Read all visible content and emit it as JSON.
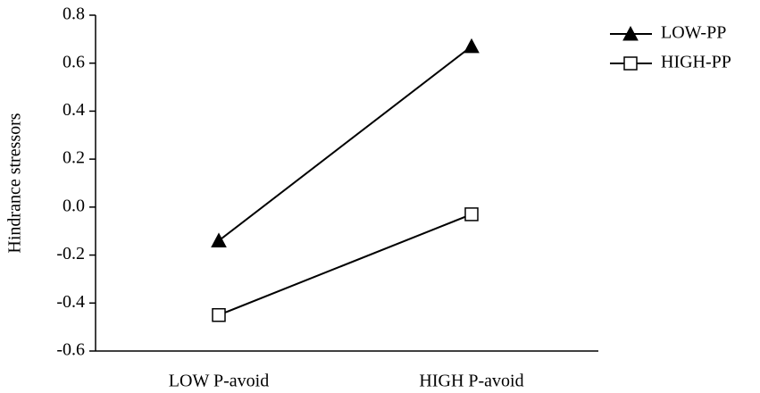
{
  "chart_data": {
    "type": "line",
    "y_label": "Hindrance stressors",
    "categories": [
      "LOW P-avoid",
      "HIGH P-avoid"
    ],
    "series": [
      {
        "name": "LOW-PP",
        "color": "#000000",
        "marker": "triangle",
        "values": [
          -0.14,
          0.67
        ]
      },
      {
        "name": "HIGH-PP",
        "color": "#000000",
        "marker": "square",
        "values": [
          -0.45,
          -0.03
        ]
      }
    ],
    "ylim": [
      -0.6,
      0.8
    ],
    "yticks": [
      -0.6,
      -0.4,
      -0.2,
      {
        "value": 0,
        "label": "0.0"
      },
      0.2,
      0.4,
      0.6,
      0.8
    ],
    "grid": false,
    "legend": "upper right"
  }
}
